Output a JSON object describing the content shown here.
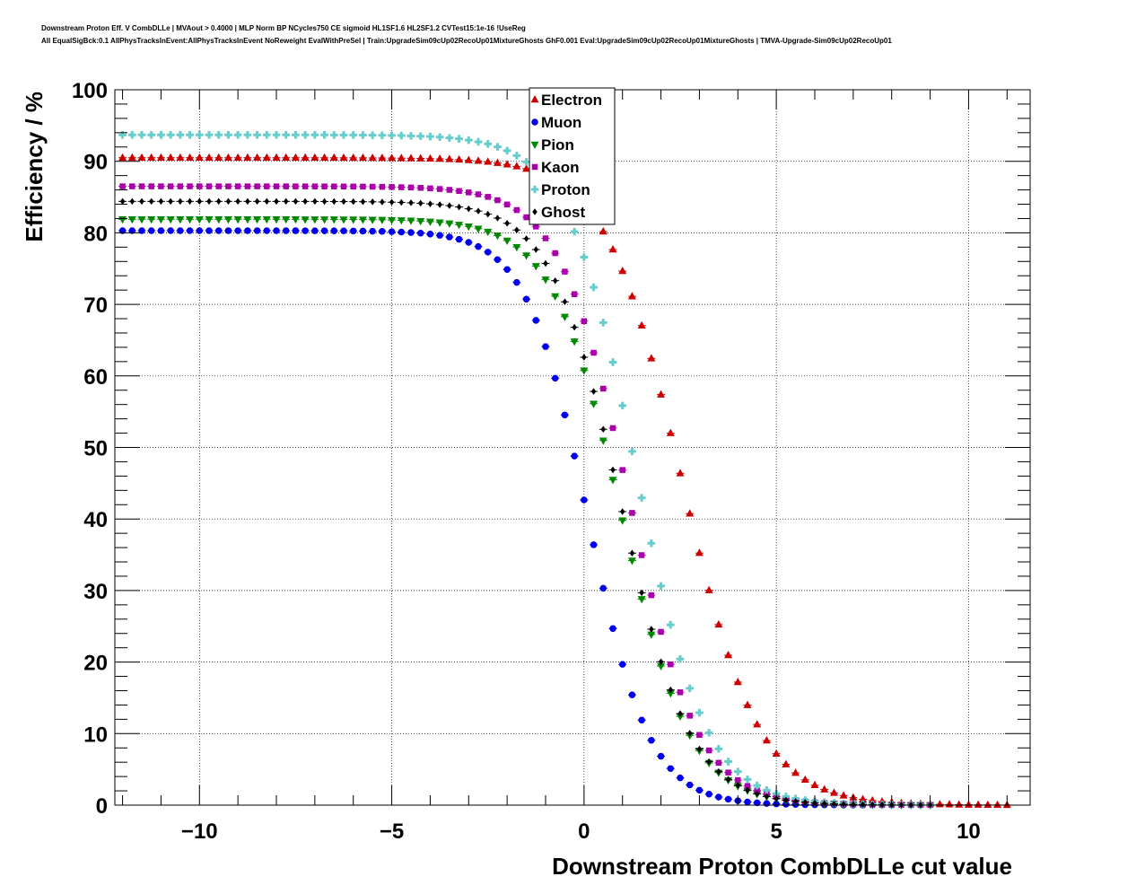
{
  "header": {
    "line1": "Downstream Proton Eff. V CombDLLe | MVAout > 0.4000 | MLP Norm BP NCycles750 CE sigmoid HL1SF1.6 HL2SF1.2 CVTest15:1e-16 !UseReg",
    "line2": "All EqualSigBck:0.1 AllPhysTracksInEvent:AllPhysTracksInEvent NoReweight EvalWithPreSel | Train:UpgradeSim09cUp02RecoUp01MixtureGhosts GhF0.001 Eval:UpgradeSim09cUp02RecoUp01MixtureGhosts | TMVA-Upgrade-Sim09cUp02RecoUp01"
  },
  "chart_data": {
    "type": "scatter",
    "xlabel": "Downstream Proton CombDLLe cut value",
    "ylabel": "Efficiency / %",
    "xlim": [
      -12.2,
      11.6
    ],
    "ylim": [
      0,
      100
    ],
    "xticks": [
      -10,
      -5,
      0,
      5,
      10
    ],
    "xtick_labels": [
      "−10",
      "−5",
      "0",
      "5",
      "10"
    ],
    "yticks": [
      0,
      10,
      20,
      30,
      40,
      50,
      60,
      70,
      80,
      90,
      100
    ],
    "ytick_labels": [
      "0",
      "10",
      "20",
      "30",
      "40",
      "50",
      "60",
      "70",
      "80",
      "90",
      "100"
    ],
    "grid": true,
    "legend_position": "top-center",
    "x_start": -12,
    "x_step": 0.25,
    "series": [
      {
        "name": "Electron",
        "color": "#cc0000",
        "marker": "triangle-up",
        "plateau": 90.5,
        "midpoint": 2.55,
        "width": 1.0,
        "x_end": 11.0
      },
      {
        "name": "Muon",
        "color": "#0000ee",
        "marker": "circle",
        "plateau": 80.3,
        "midpoint": 0.1,
        "width": 0.8,
        "x_end": 8.0
      },
      {
        "name": "Pion",
        "color": "#008800",
        "marker": "triangle-down",
        "plateau": 81.9,
        "midpoint": 0.95,
        "width": 0.9,
        "x_end": 9.0
      },
      {
        "name": "Kaon",
        "color": "#aa00aa",
        "marker": "square",
        "plateau": 86.5,
        "midpoint": 1.15,
        "width": 0.9,
        "x_end": 9.0
      },
      {
        "name": "Proton",
        "color": "#66cccc",
        "marker": "cross",
        "plateau": 93.7,
        "midpoint": 1.35,
        "width": 0.9,
        "x_end": 9.0
      },
      {
        "name": "Ghost",
        "color": "#000000",
        "marker": "diamond",
        "plateau": 84.4,
        "midpoint": 0.95,
        "width": 0.9,
        "x_end": 9.0
      }
    ]
  }
}
